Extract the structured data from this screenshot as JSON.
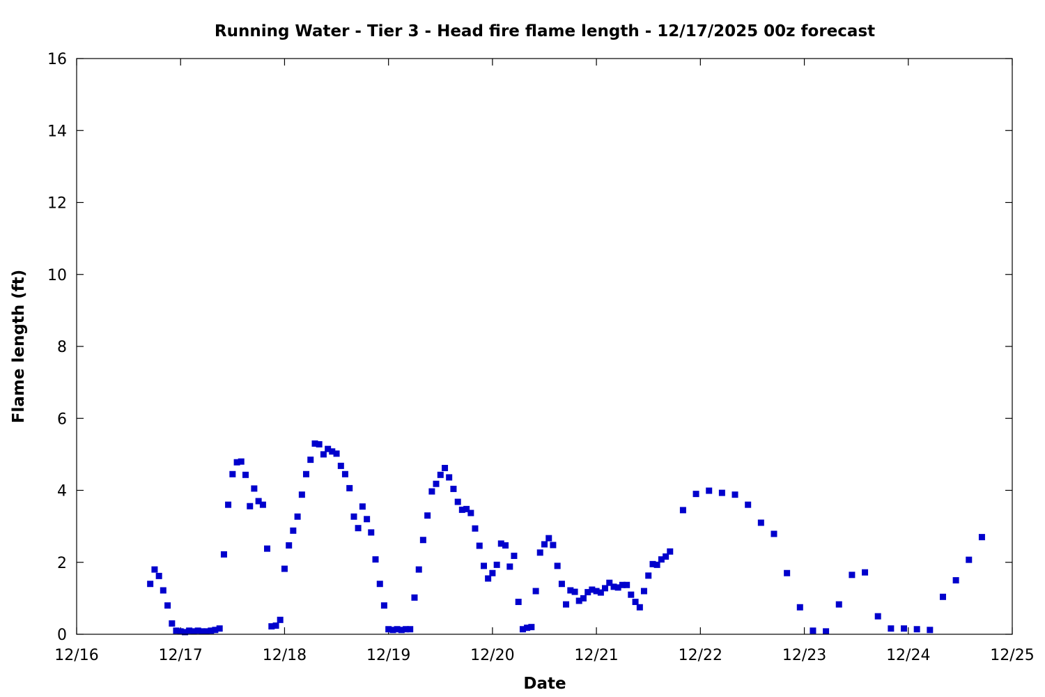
{
  "chart_data": {
    "type": "scatter",
    "title": "Running Water - Tier 3 - Head fire flame length - 12/17/2025 00z forecast",
    "xlabel": "Date",
    "ylabel": "Flame length (ft)",
    "x_unit": "days (decimal day-of-month, December 2025)",
    "xlim": [
      16,
      25
    ],
    "ylim": [
      0,
      16
    ],
    "x_ticks": [
      {
        "value": 16,
        "label": "12/16"
      },
      {
        "value": 17,
        "label": "12/17"
      },
      {
        "value": 18,
        "label": "12/18"
      },
      {
        "value": 19,
        "label": "12/19"
      },
      {
        "value": 20,
        "label": "12/20"
      },
      {
        "value": 21,
        "label": "12/21"
      },
      {
        "value": 22,
        "label": "12/22"
      },
      {
        "value": 23,
        "label": "12/23"
      },
      {
        "value": 24,
        "label": "12/24"
      },
      {
        "value": 25,
        "label": "12/25"
      }
    ],
    "y_ticks": [
      {
        "value": 0,
        "label": "0"
      },
      {
        "value": 2,
        "label": "2"
      },
      {
        "value": 4,
        "label": "4"
      },
      {
        "value": 6,
        "label": "6"
      },
      {
        "value": 8,
        "label": "8"
      },
      {
        "value": 10,
        "label": "10"
      },
      {
        "value": 12,
        "label": "12"
      },
      {
        "value": 14,
        "label": "14"
      },
      {
        "value": 16,
        "label": "16"
      }
    ],
    "grid": false,
    "legend": "none",
    "marker": "square",
    "color": "#0000cc",
    "series": [
      {
        "points": [
          [
            16.708,
            1.4
          ],
          [
            16.75,
            1.8
          ],
          [
            16.792,
            1.62
          ],
          [
            16.833,
            1.22
          ],
          [
            16.875,
            0.8
          ],
          [
            16.917,
            0.3
          ],
          [
            16.958,
            0.1
          ],
          [
            17.0,
            0.08
          ],
          [
            17.042,
            0.06
          ],
          [
            17.083,
            0.1
          ],
          [
            17.125,
            0.08
          ],
          [
            17.167,
            0.1
          ],
          [
            17.208,
            0.08
          ],
          [
            17.25,
            0.08
          ],
          [
            17.292,
            0.1
          ],
          [
            17.333,
            0.12
          ],
          [
            17.375,
            0.16
          ],
          [
            17.417,
            2.22
          ],
          [
            17.458,
            3.6
          ],
          [
            17.5,
            4.45
          ],
          [
            17.542,
            4.78
          ],
          [
            17.583,
            4.8
          ],
          [
            17.625,
            4.43
          ],
          [
            17.667,
            3.56
          ],
          [
            17.708,
            4.05
          ],
          [
            17.75,
            3.7
          ],
          [
            17.792,
            3.6
          ],
          [
            17.833,
            2.38
          ],
          [
            17.875,
            0.22
          ],
          [
            17.917,
            0.24
          ],
          [
            17.958,
            0.4
          ],
          [
            18.0,
            1.82
          ],
          [
            18.042,
            2.47
          ],
          [
            18.083,
            2.88
          ],
          [
            18.125,
            3.27
          ],
          [
            18.167,
            3.88
          ],
          [
            18.208,
            4.45
          ],
          [
            18.25,
            4.85
          ],
          [
            18.292,
            5.3
          ],
          [
            18.333,
            5.28
          ],
          [
            18.375,
            5.0
          ],
          [
            18.417,
            5.15
          ],
          [
            18.458,
            5.08
          ],
          [
            18.5,
            5.02
          ],
          [
            18.542,
            4.68
          ],
          [
            18.583,
            4.45
          ],
          [
            18.625,
            4.06
          ],
          [
            18.667,
            3.27
          ],
          [
            18.708,
            2.95
          ],
          [
            18.75,
            3.55
          ],
          [
            18.792,
            3.2
          ],
          [
            18.833,
            2.83
          ],
          [
            18.875,
            2.08
          ],
          [
            18.917,
            1.4
          ],
          [
            18.958,
            0.8
          ],
          [
            19.0,
            0.14
          ],
          [
            19.042,
            0.12
          ],
          [
            19.083,
            0.14
          ],
          [
            19.125,
            0.12
          ],
          [
            19.167,
            0.14
          ],
          [
            19.208,
            0.14
          ],
          [
            19.25,
            1.02
          ],
          [
            19.292,
            1.8
          ],
          [
            19.333,
            2.62
          ],
          [
            19.375,
            3.3
          ],
          [
            19.417,
            3.97
          ],
          [
            19.458,
            4.18
          ],
          [
            19.5,
            4.43
          ],
          [
            19.542,
            4.62
          ],
          [
            19.583,
            4.36
          ],
          [
            19.625,
            4.04
          ],
          [
            19.667,
            3.68
          ],
          [
            19.708,
            3.46
          ],
          [
            19.75,
            3.48
          ],
          [
            19.792,
            3.37
          ],
          [
            19.833,
            2.94
          ],
          [
            19.875,
            2.46
          ],
          [
            19.917,
            1.9
          ],
          [
            19.958,
            1.55
          ],
          [
            20.0,
            1.7
          ],
          [
            20.042,
            1.93
          ],
          [
            20.083,
            2.52
          ],
          [
            20.125,
            2.47
          ],
          [
            20.167,
            1.88
          ],
          [
            20.208,
            2.18
          ],
          [
            20.25,
            0.9
          ],
          [
            20.292,
            0.14
          ],
          [
            20.333,
            0.18
          ],
          [
            20.375,
            0.2
          ],
          [
            20.417,
            1.2
          ],
          [
            20.458,
            2.27
          ],
          [
            20.5,
            2.5
          ],
          [
            20.542,
            2.67
          ],
          [
            20.583,
            2.48
          ],
          [
            20.625,
            1.9
          ],
          [
            20.667,
            1.4
          ],
          [
            20.708,
            0.83
          ],
          [
            20.75,
            1.22
          ],
          [
            20.792,
            1.18
          ],
          [
            20.833,
            0.93
          ],
          [
            20.875,
            1.0
          ],
          [
            20.917,
            1.17
          ],
          [
            20.958,
            1.24
          ],
          [
            21.0,
            1.2
          ],
          [
            21.042,
            1.16
          ],
          [
            21.083,
            1.28
          ],
          [
            21.125,
            1.43
          ],
          [
            21.167,
            1.32
          ],
          [
            21.208,
            1.3
          ],
          [
            21.25,
            1.37
          ],
          [
            21.292,
            1.37
          ],
          [
            21.333,
            1.1
          ],
          [
            21.375,
            0.9
          ],
          [
            21.417,
            0.75
          ],
          [
            21.458,
            1.2
          ],
          [
            21.5,
            1.63
          ],
          [
            21.542,
            1.95
          ],
          [
            21.583,
            1.93
          ],
          [
            21.625,
            2.08
          ],
          [
            21.667,
            2.16
          ],
          [
            21.708,
            2.3
          ],
          [
            21.833,
            3.45
          ],
          [
            21.958,
            3.9
          ],
          [
            22.083,
            3.99
          ],
          [
            22.208,
            3.93
          ],
          [
            22.333,
            3.88
          ],
          [
            22.458,
            3.6
          ],
          [
            22.583,
            3.1
          ],
          [
            22.708,
            2.79
          ],
          [
            22.833,
            1.7
          ],
          [
            22.958,
            0.75
          ],
          [
            23.083,
            0.1
          ],
          [
            23.208,
            0.08
          ],
          [
            23.333,
            0.83
          ],
          [
            23.458,
            1.65
          ],
          [
            23.583,
            1.72
          ],
          [
            23.708,
            0.5
          ],
          [
            23.833,
            0.16
          ],
          [
            23.958,
            0.16
          ],
          [
            24.083,
            0.14
          ],
          [
            24.208,
            0.12
          ],
          [
            24.333,
            1.04
          ],
          [
            24.458,
            1.5
          ],
          [
            24.583,
            2.07
          ],
          [
            24.708,
            2.7
          ]
        ]
      }
    ]
  }
}
